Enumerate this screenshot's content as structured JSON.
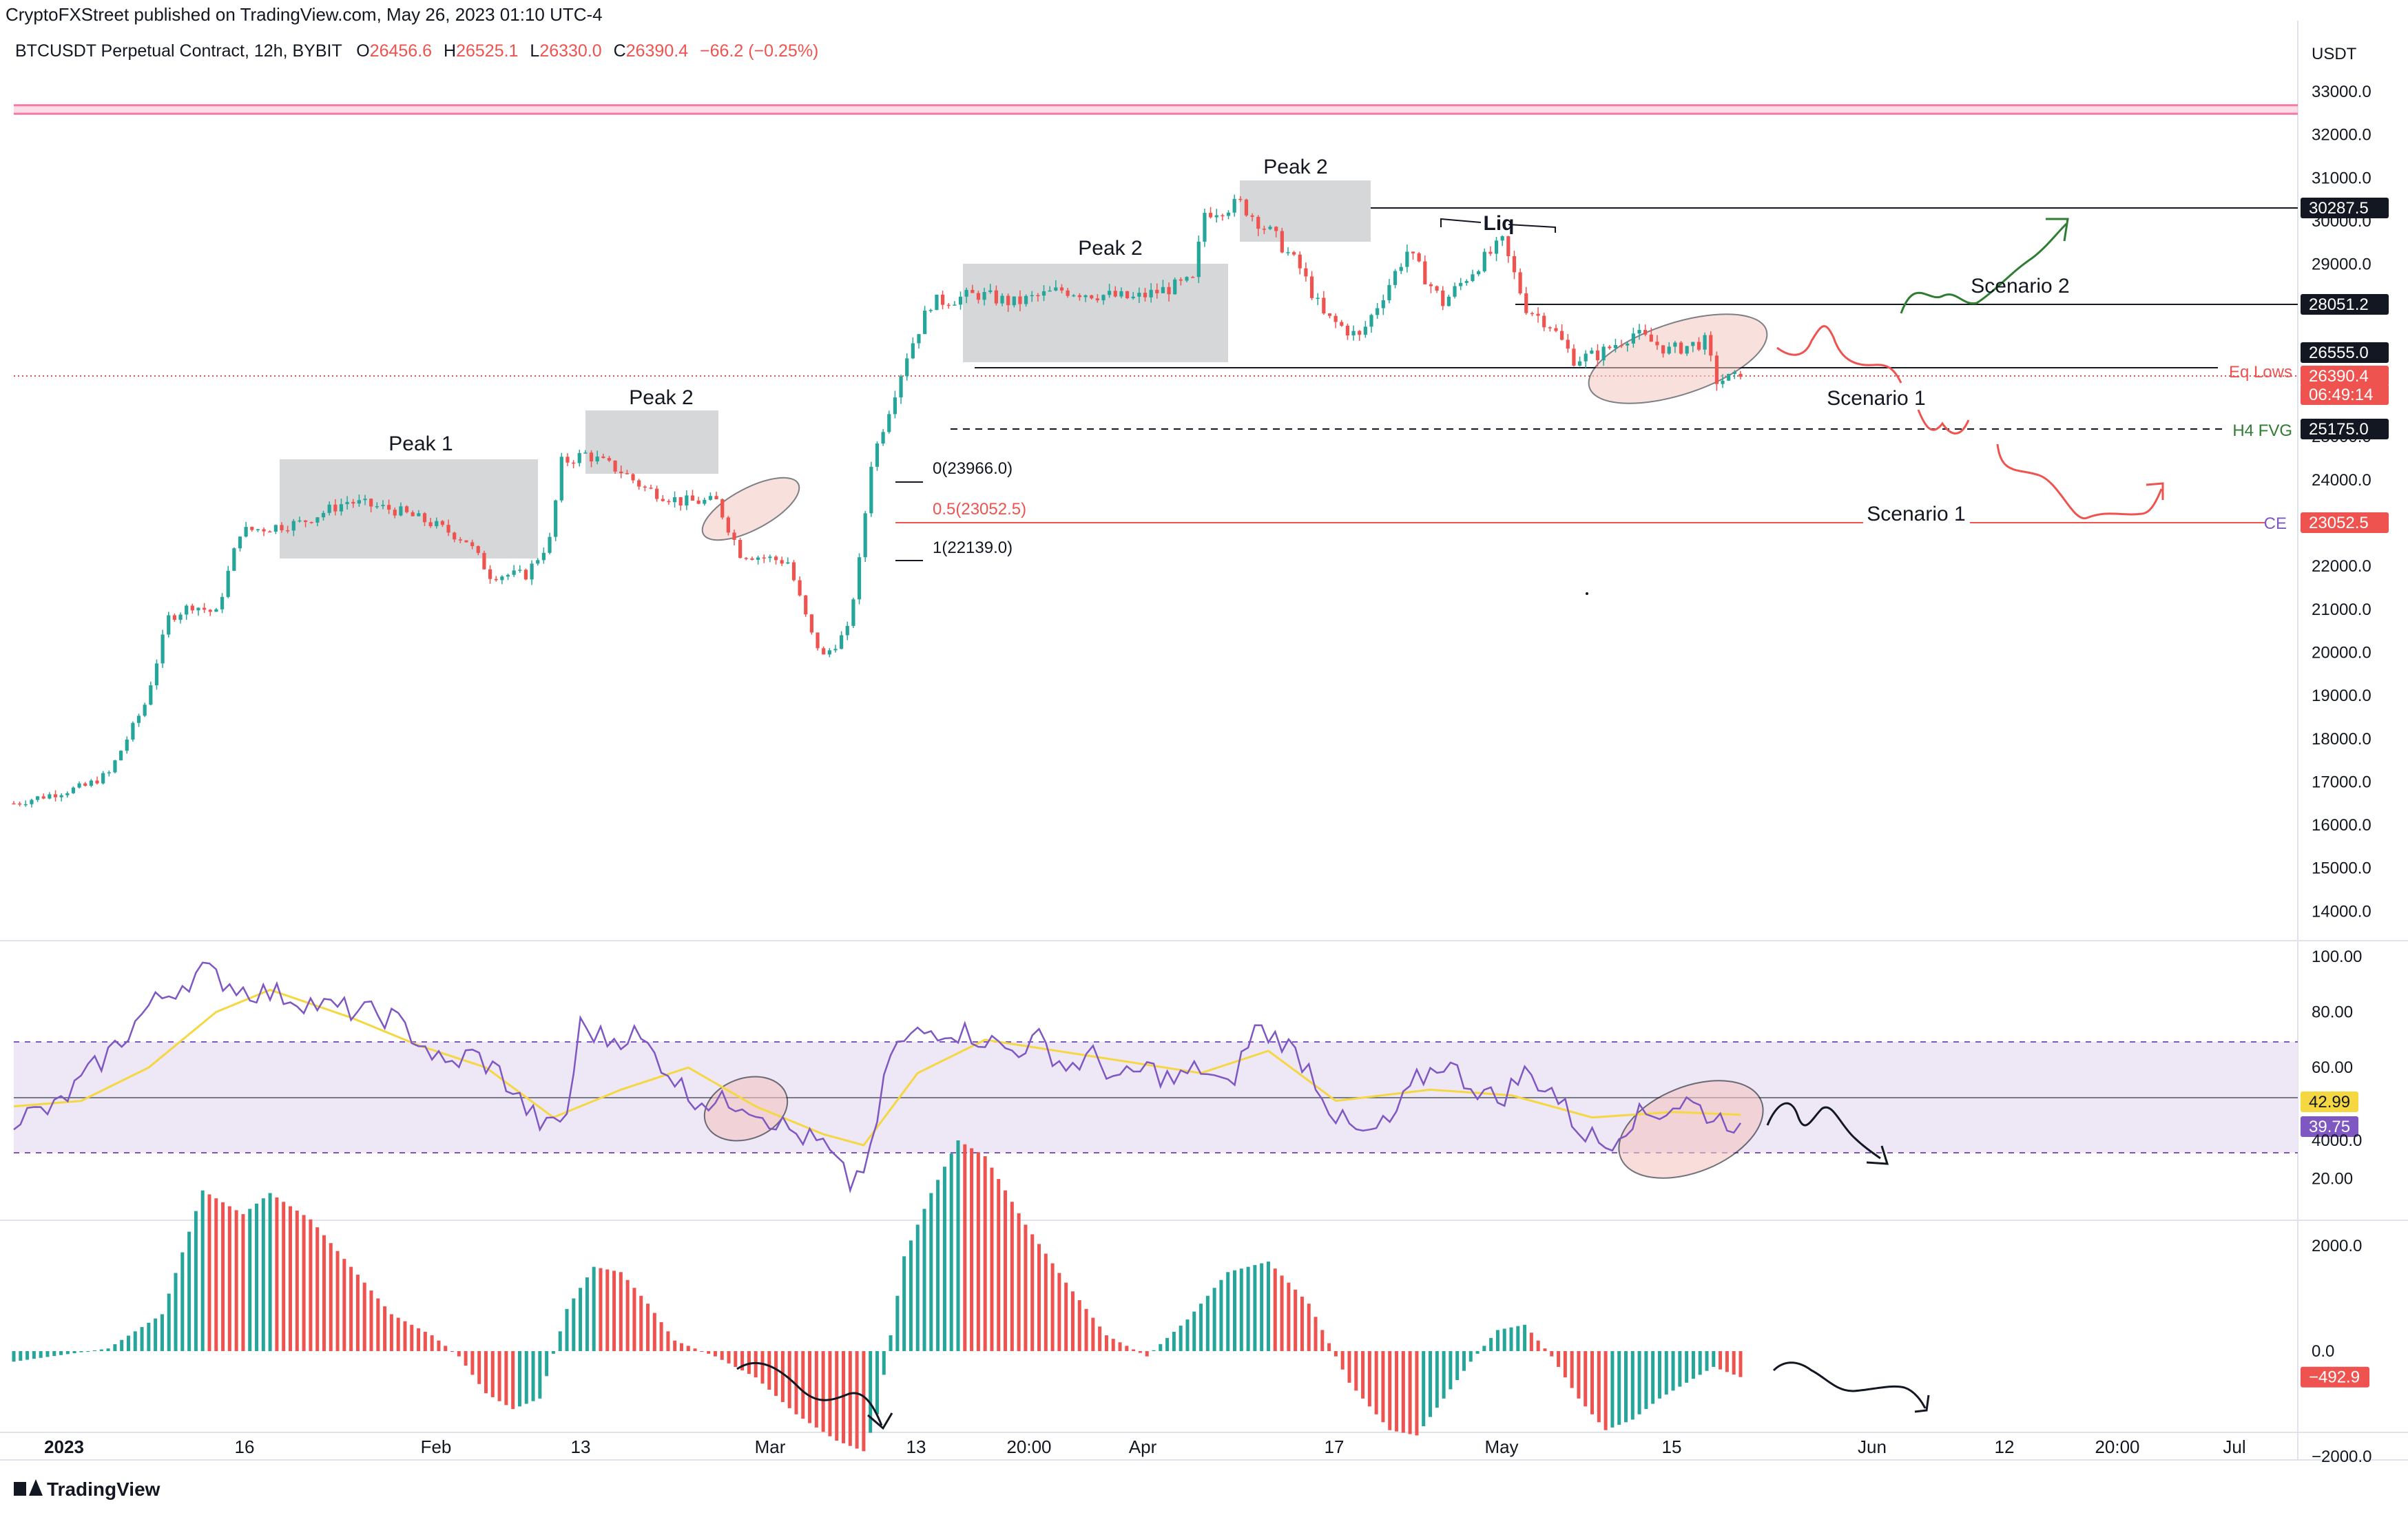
{
  "publisher": "CryptoFXStreet published on TradingView.com, May 26, 2023 01:10 UTC-4",
  "symbol": {
    "name": "BTCUSDT Perpetual Contract, 12h, BYBIT",
    "o_label": "O",
    "o_value": "26456.6",
    "h_label": "H",
    "h_value": "26525.1",
    "l_label": "L",
    "l_value": "26330.0",
    "c_label": "C",
    "c_value": "26390.4",
    "change": "−66.2 (−0.25%)"
  },
  "colors": {
    "up": "#26a69a",
    "down": "#ef5350",
    "rsi": "#7e57c2",
    "rsi_ma": "#f5d742",
    "rsi_band": "#ede7f6",
    "box": "#c8c9cc",
    "black": "#131722",
    "green_draw": "#2e7d32"
  },
  "price_axis": {
    "currency": "USDT",
    "ticks": [
      "33000.0",
      "32000.0",
      "31000.0",
      "30000.0",
      "29000.0",
      "28000.0",
      "27000.0",
      "26000.0",
      "25000.0",
      "24000.0",
      "23000.0",
      "22000.0",
      "21000.0",
      "20000.0",
      "19000.0",
      "18000.0",
      "17000.0",
      "16000.0",
      "15000.0",
      "14000.0"
    ]
  },
  "price_tags": [
    {
      "value": "30287.5",
      "style": "black"
    },
    {
      "value": "28051.2",
      "style": "black"
    },
    {
      "value": "26555.0",
      "style": "black"
    },
    {
      "value": "26390.4",
      "style": "red"
    },
    {
      "value": "06:49:14",
      "style": "red"
    },
    {
      "value": "25175.0",
      "style": "black"
    },
    {
      "value": "23052.5",
      "style": "red"
    }
  ],
  "level_labels": {
    "eq_lows": "Eq Lows",
    "h4_fvg": "H4 FVG",
    "ce": "CE"
  },
  "rsi_axis": {
    "ticks": [
      "100.00",
      "80.00",
      "60.00",
      "40.00",
      "20.00"
    ],
    "tags": [
      {
        "value": "42.99",
        "style": "yellow"
      },
      {
        "value": "39.75",
        "style": "purple"
      }
    ]
  },
  "ao_axis": {
    "ticks": [
      "4000.0",
      "2000.0",
      "0.0",
      "−2000.0"
    ],
    "tags": [
      {
        "value": "−492.9",
        "style": "red"
      }
    ]
  },
  "time_axis": [
    "2023",
    "16",
    "Feb",
    "13",
    "Mar",
    "13",
    "20:00",
    "Apr",
    "17",
    "May",
    "15",
    "Jun",
    "12",
    "20:00",
    "Jul"
  ],
  "annotations": {
    "peak1": "Peak 1",
    "peak2_a": "Peak 2",
    "peak2_b": "Peak 2",
    "peak2_c": "Peak 2",
    "liq": "Liq",
    "scenario2": "Scenario 2",
    "scenario1_a": "Scenario 1",
    "scenario1_b": "Scenario 1"
  },
  "fib_labels": {
    "f0": "0(23966.0)",
    "f05": "0.5(23052.5)",
    "f1": "1(22139.0)"
  },
  "logo": "TradingView",
  "chart_data": [
    {
      "type": "candlestick",
      "title": "BTCUSDT Perpetual Contract, 12h, BYBIT",
      "ylabel": "USDT",
      "ylim": [
        13500,
        33500
      ],
      "x_range": [
        "2023-01-01",
        "2023-07-10"
      ],
      "interval": "12h",
      "last": {
        "open": 26456.6,
        "high": 26525.1,
        "low": 26330.0,
        "close": 26390.4
      },
      "close_path": [
        [
          "2023-01-01",
          16500
        ],
        [
          "2023-01-07",
          16900
        ],
        [
          "2023-01-09",
          17200
        ],
        [
          "2023-01-12",
          18800
        ],
        [
          "2023-01-14",
          20800
        ],
        [
          "2023-01-16",
          21100
        ],
        [
          "2023-01-18",
          20900
        ],
        [
          "2023-01-20",
          22800
        ],
        [
          "2023-01-25",
          23000
        ],
        [
          "2023-01-29",
          23500
        ],
        [
          "2023-02-02",
          23300
        ],
        [
          "2023-02-05",
          23000
        ],
        [
          "2023-02-08",
          22600
        ],
        [
          "2023-02-10",
          21800
        ],
        [
          "2023-02-13",
          21800
        ],
        [
          "2023-02-15",
          22600
        ],
        [
          "2023-02-16",
          24400
        ],
        [
          "2023-02-18",
          24600
        ],
        [
          "2023-02-21",
          24200
        ],
        [
          "2023-02-23",
          23800
        ],
        [
          "2023-02-26",
          23500
        ],
        [
          "2023-03-01",
          23500
        ],
        [
          "2023-03-03",
          22300
        ],
        [
          "2023-03-07",
          22100
        ],
        [
          "2023-03-09",
          20400
        ],
        [
          "2023-03-10",
          19900
        ],
        [
          "2023-03-12",
          20500
        ],
        [
          "2023-03-13",
          22100
        ],
        [
          "2023-03-14",
          24400
        ],
        [
          "2023-03-17",
          26900
        ],
        [
          "2023-03-19",
          28100
        ],
        [
          "2023-03-23",
          28300
        ],
        [
          "2023-03-26",
          28100
        ],
        [
          "2023-03-30",
          28400
        ],
        [
          "2023-04-05",
          28200
        ],
        [
          "2023-04-10",
          28600
        ],
        [
          "2023-04-11",
          30200
        ],
        [
          "2023-04-14",
          30400
        ],
        [
          "2023-04-17",
          29600
        ],
        [
          "2023-04-19",
          28900
        ],
        [
          "2023-04-21",
          27800
        ],
        [
          "2023-04-24",
          27300
        ],
        [
          "2023-04-26",
          28300
        ],
        [
          "2023-04-28",
          29300
        ],
        [
          "2023-05-01",
          28100
        ],
        [
          "2023-05-04",
          29000
        ],
        [
          "2023-05-06",
          29500
        ],
        [
          "2023-05-08",
          28000
        ],
        [
          "2023-05-10",
          27600
        ],
        [
          "2023-05-12",
          26800
        ],
        [
          "2023-05-14",
          26900
        ],
        [
          "2023-05-17",
          27400
        ],
        [
          "2023-05-20",
          27000
        ],
        [
          "2023-05-23",
          27200
        ],
        [
          "2023-05-24",
          26300
        ],
        [
          "2023-05-26",
          26390.4
        ]
      ],
      "levels": [
        {
          "label": "Eq Lows",
          "value": 26555.0
        },
        {
          "label": "H4 FVG",
          "value": 25175.0
        },
        {
          "label": "CE",
          "value": 23052.5
        },
        {
          "value": 30287.5
        },
        {
          "value": 28051.2
        }
      ],
      "fibonacci": [
        {
          "ratio": 0,
          "value": 23966.0
        },
        {
          "ratio": 0.5,
          "value": 23052.5
        },
        {
          "ratio": 1,
          "value": 22139.0
        }
      ]
    },
    {
      "type": "line",
      "ylim": [
        10,
        105
      ],
      "reference_lines": [
        70,
        50,
        30
      ],
      "series": [
        {
          "values": [
            [
              0,
              42
            ],
            [
              6,
              45
            ],
            [
              12,
              60
            ],
            [
              16,
              70
            ],
            [
              20,
              82
            ],
            [
              28,
              95
            ],
            [
              34,
              88
            ],
            [
              40,
              86
            ],
            [
              46,
              82
            ],
            [
              52,
              80
            ],
            [
              56,
              78
            ],
            [
              60,
              70
            ],
            [
              64,
              60
            ],
            [
              68,
              65
            ],
            [
              72,
              58
            ],
            [
              76,
              45
            ],
            [
              79,
              38
            ],
            [
              82,
              43
            ],
            [
              84,
              75
            ],
            [
              88,
              70
            ],
            [
              92,
              72
            ],
            [
              96,
              62
            ],
            [
              100,
              50
            ],
            [
              104,
              47
            ],
            [
              108,
              48
            ],
            [
              112,
              42
            ],
            [
              116,
              36
            ],
            [
              120,
              32
            ],
            [
              124,
              18
            ],
            [
              127,
              28
            ],
            [
              130,
              66
            ],
            [
              134,
              72
            ],
            [
              138,
              74
            ],
            [
              142,
              72
            ],
            [
              148,
              66
            ],
            [
              152,
              70
            ],
            [
              156,
              60
            ],
            [
              160,
              64
            ],
            [
              164,
              55
            ],
            [
              168,
              60
            ],
            [
              172,
              55
            ],
            [
              176,
              60
            ],
            [
              180,
              52
            ],
            [
              184,
              74
            ],
            [
              188,
              70
            ],
            [
              192,
              60
            ],
            [
              196,
              42
            ],
            [
              200,
              35
            ],
            [
              204,
              40
            ],
            [
              208,
              55
            ],
            [
              212,
              62
            ],
            [
              216,
              54
            ],
            [
              220,
              48
            ],
            [
              224,
              58
            ],
            [
              228,
              52
            ],
            [
              232,
              38
            ],
            [
              236,
              32
            ],
            [
              240,
              42
            ],
            [
              244,
              44
            ],
            [
              248,
              48
            ],
            [
              252,
              42
            ],
            [
              256,
              40
            ]
          ]
        },
        {
          "values": [
            [
              0,
              46
            ],
            [
              10,
              48
            ],
            [
              20,
              60
            ],
            [
              30,
              80
            ],
            [
              38,
              88
            ],
            [
              50,
              78
            ],
            [
              60,
              68
            ],
            [
              70,
              60
            ],
            [
              80,
              42
            ],
            [
              90,
              52
            ],
            [
              100,
              60
            ],
            [
              110,
              46
            ],
            [
              120,
              36
            ],
            [
              126,
              32
            ],
            [
              134,
              58
            ],
            [
              144,
              70
            ],
            [
              160,
              64
            ],
            [
              176,
              58
            ],
            [
              186,
              66
            ],
            [
              196,
              48
            ],
            [
              210,
              52
            ],
            [
              222,
              50
            ],
            [
              234,
              42
            ],
            [
              246,
              44
            ],
            [
              256,
              42.99
            ]
          ]
        }
      ],
      "last_values": [
        39.75,
        42.99
      ]
    },
    {
      "type": "bar",
      "ylim": [
        -2200,
        4300
      ],
      "series": [
        {
          "values": [
            [
              0,
              -200
            ],
            [
              14,
              50
            ],
            [
              22,
              700
            ],
            [
              28,
              3050
            ],
            [
              34,
              2600
            ],
            [
              38,
              3000
            ],
            [
              44,
              2500
            ],
            [
              50,
              1600
            ],
            [
              56,
              700
            ],
            [
              62,
              300
            ],
            [
              66,
              -100
            ],
            [
              70,
              -800
            ],
            [
              74,
              -1100
            ],
            [
              78,
              -900
            ],
            [
              82,
              800
            ],
            [
              86,
              1600
            ],
            [
              90,
              1500
            ],
            [
              94,
              900
            ],
            [
              98,
              200
            ],
            [
              104,
              -100
            ],
            [
              110,
              -500
            ],
            [
              116,
              -1200
            ],
            [
              122,
              -1700
            ],
            [
              126,
              -1900
            ],
            [
              128,
              -1200
            ],
            [
              132,
              1800
            ],
            [
              136,
              3000
            ],
            [
              140,
              4000
            ],
            [
              144,
              3700
            ],
            [
              150,
              2400
            ],
            [
              156,
              1300
            ],
            [
              162,
              300
            ],
            [
              168,
              -100
            ],
            [
              174,
              600
            ],
            [
              180,
              1500
            ],
            [
              186,
              1700
            ],
            [
              192,
              900
            ],
            [
              198,
              -600
            ],
            [
              204,
              -1500
            ],
            [
              208,
              -1600
            ],
            [
              212,
              -900
            ],
            [
              216,
              -200
            ],
            [
              220,
              400
            ],
            [
              224,
              500
            ],
            [
              228,
              -100
            ],
            [
              232,
              -900
            ],
            [
              236,
              -1500
            ],
            [
              240,
              -1300
            ],
            [
              244,
              -900
            ],
            [
              248,
              -600
            ],
            [
              252,
              -300
            ],
            [
              256,
              -492.9
            ]
          ]
        }
      ]
    }
  ]
}
